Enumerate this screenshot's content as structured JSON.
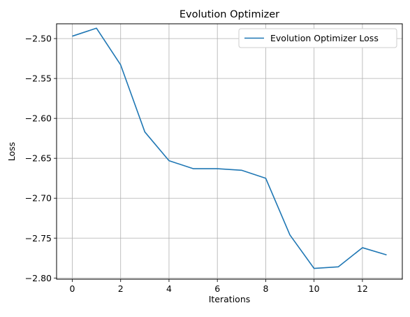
{
  "chart_data": {
    "type": "line",
    "title": "Evolution Optimizer",
    "xlabel": "Iterations",
    "ylabel": "Loss",
    "xlim": [
      -0.65,
      13.65
    ],
    "ylim": [
      -2.8015,
      -2.4815
    ],
    "x_ticks": [
      0,
      2,
      4,
      6,
      8,
      10,
      12
    ],
    "y_ticks": [
      -2.8,
      -2.75,
      -2.7,
      -2.65,
      -2.6,
      -2.55,
      -2.5
    ],
    "y_tick_labels": [
      "−2.80",
      "−2.75",
      "−2.70",
      "−2.65",
      "−2.60",
      "−2.55",
      "−2.50"
    ],
    "grid": true,
    "legend_position": "top-right",
    "series": [
      {
        "name": "Evolution Optimizer Loss",
        "color": "#1f77b4",
        "x": [
          0,
          1,
          2,
          3,
          4,
          5,
          6,
          7,
          8,
          9,
          10,
          11,
          12,
          13
        ],
        "y": [
          -2.497,
          -2.487,
          -2.533,
          -2.617,
          -2.653,
          -2.663,
          -2.663,
          -2.665,
          -2.675,
          -2.746,
          -2.788,
          -2.786,
          -2.762,
          -2.771
        ]
      }
    ]
  }
}
